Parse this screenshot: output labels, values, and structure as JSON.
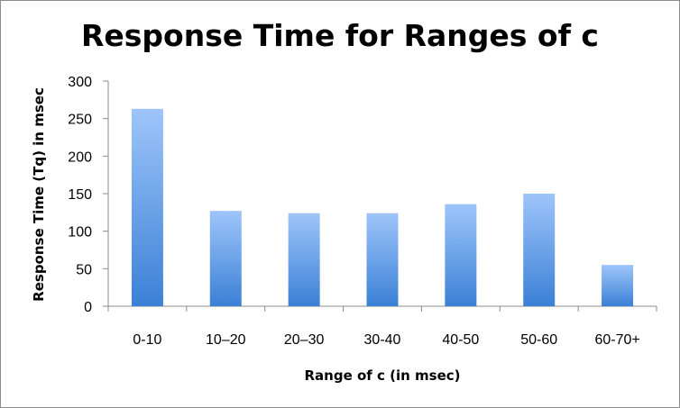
{
  "chart_data": {
    "type": "bar",
    "title": "Response Time for Ranges of c",
    "xlabel": "Range of c (in msec)",
    "ylabel": "Response Time (Tq) in msec",
    "categories": [
      "0-10",
      "10–20",
      "20–30",
      "30-40",
      "40-50",
      "50-60",
      "60-70+"
    ],
    "values": [
      263,
      127,
      124,
      124,
      136,
      150,
      55
    ],
    "ylim": [
      0,
      300
    ],
    "yticks": [
      "0",
      "50",
      "100",
      "150",
      "200",
      "250",
      "300"
    ],
    "grid": false,
    "legend": "none",
    "colors": {
      "bar_top": "#9ec5fa",
      "bar_bottom": "#3b80d6",
      "axis": "#8c8c8c"
    }
  }
}
